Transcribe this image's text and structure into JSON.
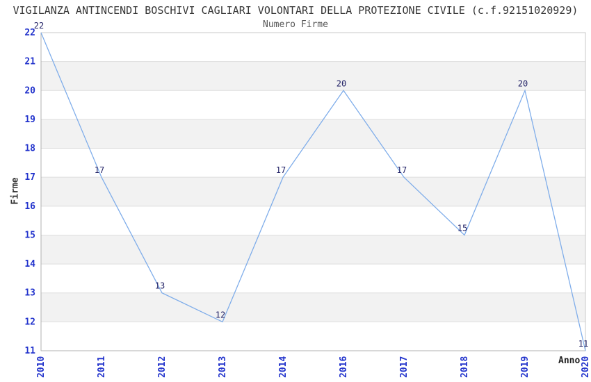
{
  "chart_data": {
    "type": "line",
    "title": "VIGILANZA ANTINCENDI BOSCHIVI CAGLIARI VOLONTARI DELLA PROTEZIONE CIVILE (c.f.92151020929)",
    "subtitle": "Numero Firme",
    "xlabel": "Anno",
    "ylabel": "Firme",
    "categories": [
      "2010",
      "2011",
      "2012",
      "2013",
      "2014",
      "2016",
      "2017",
      "2018",
      "2019",
      "2020"
    ],
    "values": [
      22,
      17,
      13,
      12,
      17,
      20,
      17,
      15,
      20,
      11
    ],
    "ylim": [
      11,
      22
    ],
    "ytick_step": 1,
    "yticks": [
      11,
      12,
      13,
      14,
      15,
      16,
      17,
      18,
      19,
      20,
      21,
      22
    ],
    "grid": true,
    "band_fill": "alternating-horizontal",
    "legend": "none",
    "data_labels_shown": true,
    "colors": {
      "line": "#7fadea",
      "tick_label": "#2233cc",
      "data_label": "#222266",
      "band": "#f2f2f2",
      "gridline": "#dddddd",
      "plot_border": "#c9c9c9",
      "axis_line": "#b0b0b0",
      "title": "#363636",
      "subtitle": "#555555",
      "axis_title": "#333333",
      "background": "#ffffff"
    }
  }
}
